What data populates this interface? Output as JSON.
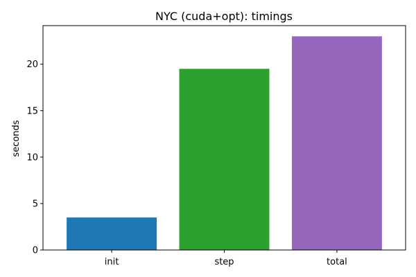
{
  "chart_data": {
    "type": "bar",
    "title": "NYC (cuda+opt): timings",
    "xlabel": "",
    "ylabel": "seconds",
    "categories": [
      "init",
      "step",
      "total"
    ],
    "values": [
      3.5,
      19.5,
      23.0
    ],
    "colors": [
      "#1f77b4",
      "#2ca02c",
      "#9467bd"
    ],
    "ylim": [
      0,
      24.15
    ],
    "yticks": [
      0,
      5,
      10,
      15,
      20
    ],
    "grid": false,
    "legend": "none"
  }
}
